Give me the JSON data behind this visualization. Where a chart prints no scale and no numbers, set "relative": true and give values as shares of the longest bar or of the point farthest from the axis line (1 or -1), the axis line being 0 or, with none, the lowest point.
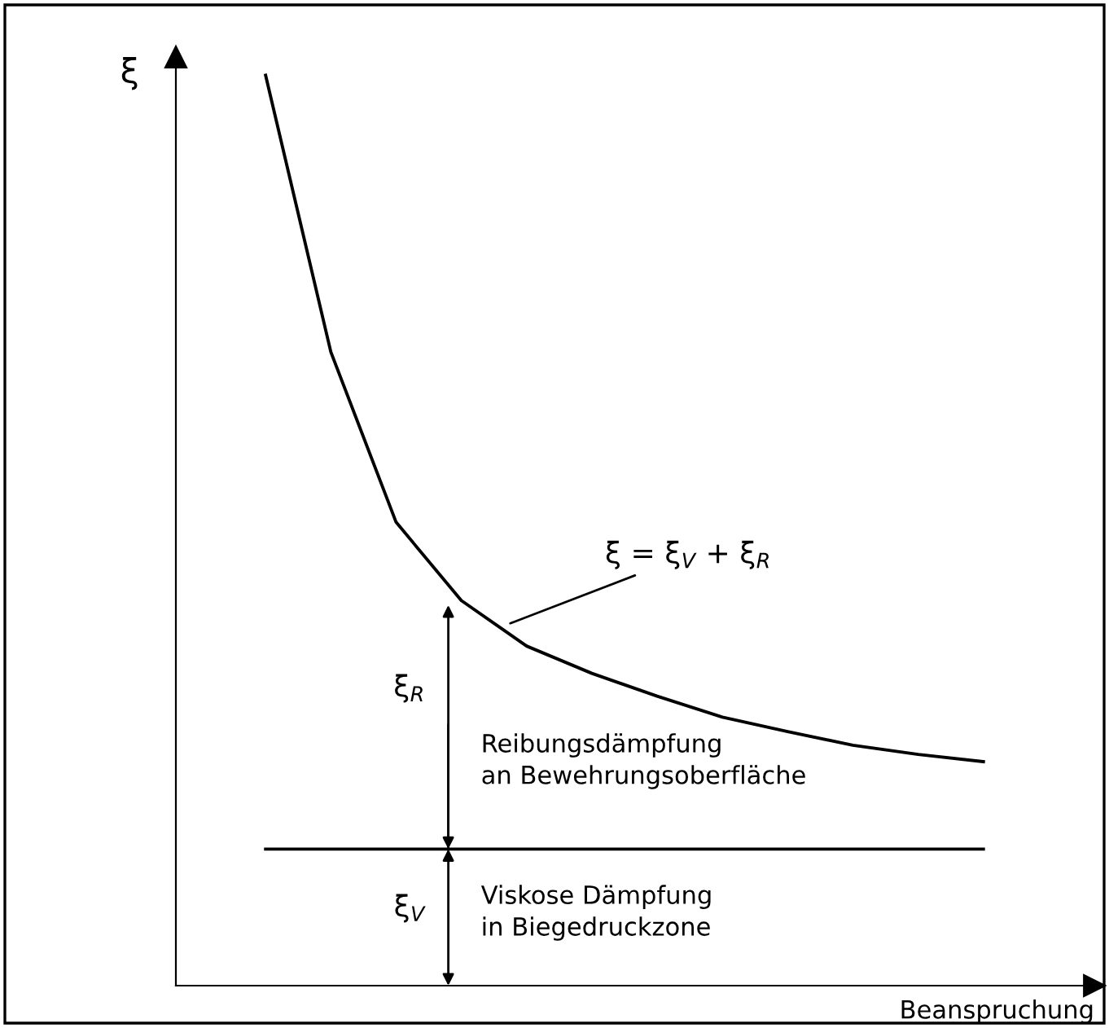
{
  "chart_data": {
    "type": "line",
    "relative": true,
    "ylabel": "ξ",
    "xlabel": "Beanspruchung",
    "categories": [
      null,
      null,
      null,
      null,
      null,
      null,
      null,
      null,
      null,
      null,
      null,
      null
    ],
    "series": [
      {
        "color": "#000000",
        "values": [
          1.0,
          0.696,
          0.509,
          0.423,
          0.373,
          0.343,
          0.318,
          0.295,
          0.279,
          0.264,
          0.254,
          0.246
        ]
      },
      {
        "color": "#000000",
        "values": [
          0.15,
          0.15,
          0.15,
          0.15,
          0.15,
          0.15,
          0.15,
          0.15,
          0.15,
          0.15,
          0.15,
          0.15
        ]
      }
    ],
    "annotations": [
      "ξ = ξ$_{V}$ + ξ$_{R}$",
      "ξ$_{R}$",
      "Reibungsdämpfung\nan Bewehrungsoberfläche",
      "ξ$_{V}$",
      "Viskose Dämpfung\nin Biegedruckzone"
    ],
    "marker": "none",
    "line_style": "solid",
    "grid": false,
    "legend": false
  }
}
